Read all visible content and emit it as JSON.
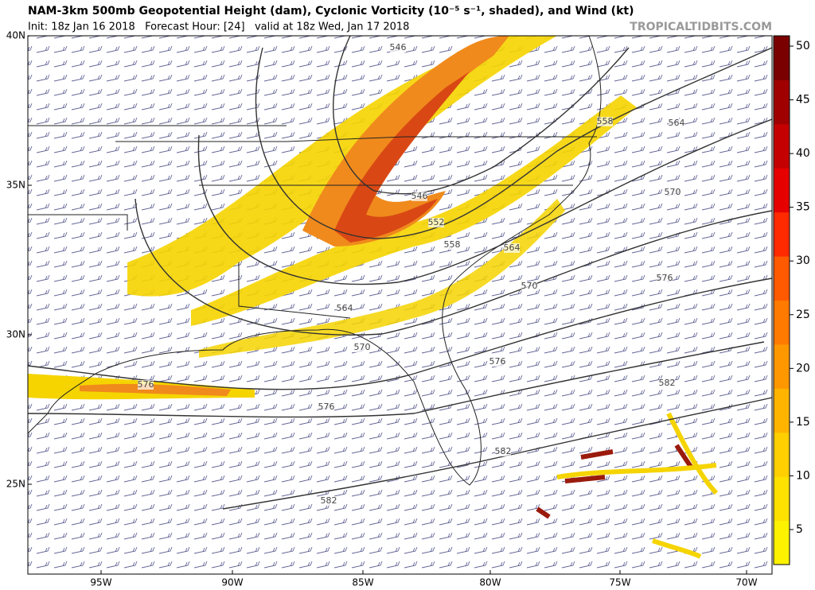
{
  "header": {
    "title": "NAM-3km 500mb Geopotential Height (dam), Cyclonic Vorticity (10⁻⁵ s⁻¹, shaded), and Wind (kt)",
    "subtitle": "Init: 18z Jan 16 2018   Forecast Hour: [24]   valid at 18z Wed, Jan 17 2018",
    "source": "TROPICALTIDBITS.COM"
  },
  "map": {
    "latitude_labels": [
      "40N",
      "35N",
      "30N",
      "25N"
    ],
    "longitude_labels": [
      "95W",
      "90W",
      "85W",
      "80W",
      "75W",
      "70W"
    ],
    "contour_labels": [
      "546",
      "546",
      "552",
      "558",
      "558",
      "564",
      "564",
      "564",
      "570",
      "570",
      "570",
      "576",
      "576",
      "576",
      "576",
      "582",
      "582",
      "582"
    ]
  },
  "colorbar": {
    "ticks": [
      "50",
      "45",
      "40",
      "35",
      "30",
      "25",
      "20",
      "15",
      "10",
      "5"
    ]
  }
}
